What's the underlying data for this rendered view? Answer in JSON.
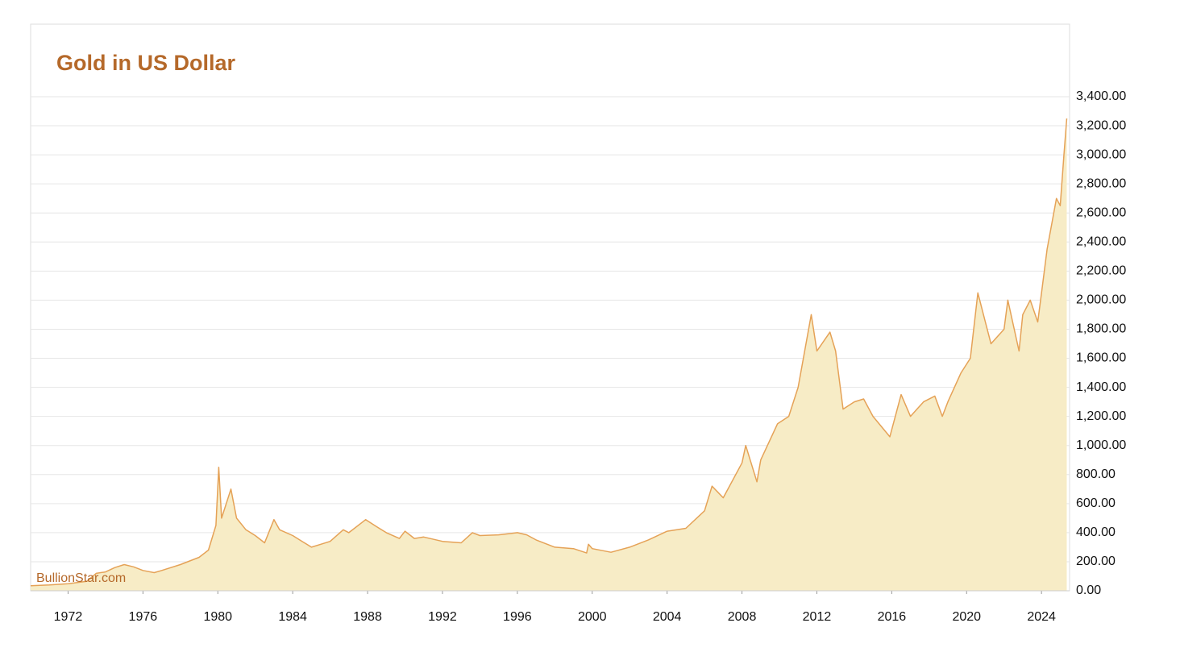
{
  "chart_data": {
    "type": "area",
    "title": "Gold in US Dollar",
    "watermark": "BullionStar.com",
    "series": [
      {
        "name": "Gold",
        "color": "#e5a257",
        "fill": "#f7ecc6",
        "x": [
          1970,
          1971,
          1972,
          1973,
          1973.5,
          1974,
          1974.5,
          1975,
          1975.5,
          1976,
          1976.6,
          1977,
          1978,
          1979,
          1979.5,
          1979.9,
          1980.05,
          1980.2,
          1980.7,
          1981,
          1981.5,
          1982,
          1982.5,
          1983,
          1983.3,
          1984,
          1984.5,
          1985,
          1985.5,
          1986,
          1986.7,
          1987,
          1987.9,
          1988.5,
          1989,
          1989.7,
          1990,
          1990.5,
          1991,
          1992,
          1993,
          1993.6,
          1994,
          1995,
          1996,
          1996.5,
          1997,
          1998,
          1999,
          1999.7,
          1999.8,
          2000,
          2001,
          2002,
          2003,
          2004,
          2005,
          2006,
          2006.4,
          2007,
          2008,
          2008.2,
          2008.8,
          2009,
          2009.9,
          2010.5,
          2011,
          2011.7,
          2012,
          2012.7,
          2013,
          2013.4,
          2014,
          2014.5,
          2015,
          2015.9,
          2016.5,
          2017,
          2017.7,
          2018.3,
          2018.7,
          2019,
          2019.7,
          2020.2,
          2020.6,
          2021,
          2021.3,
          2022,
          2022.2,
          2022.8,
          2023,
          2023.4,
          2023.8,
          2024,
          2024.3,
          2024.8,
          2025,
          2025.2,
          2025.35
        ],
        "values": [
          35,
          40,
          48,
          65,
          120,
          130,
          160,
          180,
          165,
          140,
          125,
          140,
          180,
          230,
          280,
          450,
          850,
          500,
          700,
          500,
          420,
          380,
          330,
          490,
          420,
          380,
          340,
          300,
          320,
          340,
          420,
          400,
          490,
          440,
          400,
          360,
          410,
          360,
          370,
          340,
          330,
          400,
          380,
          385,
          400,
          385,
          350,
          300,
          290,
          260,
          320,
          290,
          265,
          300,
          350,
          410,
          430,
          550,
          720,
          640,
          880,
          1000,
          750,
          900,
          1150,
          1200,
          1400,
          1900,
          1650,
          1780,
          1650,
          1250,
          1300,
          1320,
          1200,
          1060,
          1350,
          1200,
          1300,
          1340,
          1200,
          1300,
          1500,
          1600,
          2050,
          1850,
          1700,
          1800,
          2000,
          1650,
          1900,
          2000,
          1850,
          2050,
          2350,
          2700,
          2650,
          3000,
          3250
        ]
      }
    ],
    "xlim": [
      1970,
      2025.5
    ],
    "xticks": [
      1972,
      1976,
      1980,
      1984,
      1988,
      1992,
      1996,
      2000,
      2004,
      2008,
      2012,
      2016,
      2020,
      2024
    ],
    "ylim": [
      0,
      3400
    ],
    "yticks": [
      {
        "value": 0,
        "label": "0.00"
      },
      {
        "value": 200,
        "label": "200.00"
      },
      {
        "value": 400,
        "label": "400.00"
      },
      {
        "value": 600,
        "label": "600.00"
      },
      {
        "value": 800,
        "label": "800.00"
      },
      {
        "value": 1000,
        "label": "1,000.00"
      },
      {
        "value": 1200,
        "label": "1,200.00"
      },
      {
        "value": 1400,
        "label": "1,400.00"
      },
      {
        "value": 1600,
        "label": "1,600.00"
      },
      {
        "value": 1800,
        "label": "1,800.00"
      },
      {
        "value": 2000,
        "label": "2,000.00"
      },
      {
        "value": 2200,
        "label": "2,200.00"
      },
      {
        "value": 2400,
        "label": "2,400.00"
      },
      {
        "value": 2600,
        "label": "2,600.00"
      },
      {
        "value": 2800,
        "label": "2,800.00"
      },
      {
        "value": 3000,
        "label": "3,000.00"
      },
      {
        "value": 3200,
        "label": "3,200.00"
      },
      {
        "value": 3400,
        "label": "3,400.00"
      }
    ],
    "grid": true
  }
}
